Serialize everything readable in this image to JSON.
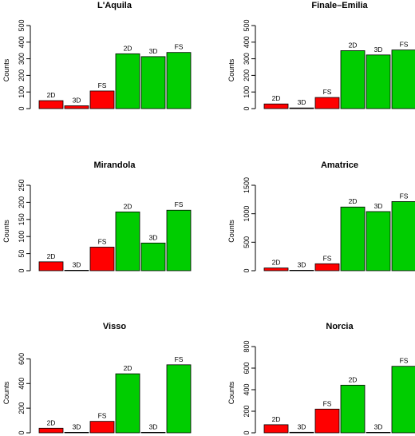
{
  "colors": {
    "red": "#ff0000",
    "green": "#00cd00",
    "stroke": "#000000"
  },
  "chart_data": [
    {
      "type": "bar",
      "title": "L'Aquila",
      "ylabel": "Counts",
      "ylim": [
        0,
        500
      ],
      "yticks": [
        "0",
        "100",
        "200",
        "300",
        "400",
        "500"
      ],
      "categories": [
        "2D",
        "3D",
        "FS",
        "2D",
        "3D",
        "FS"
      ],
      "values": [
        48,
        17,
        106,
        330,
        313,
        338
      ],
      "bar_colors": [
        "red",
        "red",
        "red",
        "green",
        "green",
        "green"
      ]
    },
    {
      "type": "bar",
      "title": "Finale–Emilia",
      "ylabel": "Counts",
      "ylim": [
        0,
        500
      ],
      "yticks": [
        "0",
        "100",
        "200",
        "300",
        "400",
        "500"
      ],
      "categories": [
        "2D",
        "3D",
        "FS",
        "2D",
        "3D",
        "FS"
      ],
      "values": [
        28,
        4,
        67,
        349,
        323,
        353
      ],
      "bar_colors": [
        "red",
        "red",
        "red",
        "green",
        "green",
        "green"
      ]
    },
    {
      "type": "bar",
      "title": "Mirandola",
      "ylabel": "Counts",
      "ylim": [
        0,
        250
      ],
      "yticks": [
        "0",
        "50",
        "100",
        "150",
        "200",
        "250"
      ],
      "categories": [
        "2D",
        "3D",
        "FS",
        "2D",
        "3D",
        "FS"
      ],
      "values": [
        26,
        1,
        69,
        172,
        81,
        177
      ],
      "bar_colors": [
        "red",
        "red",
        "red",
        "green",
        "green",
        "green"
      ]
    },
    {
      "type": "bar",
      "title": "Amatrice",
      "ylabel": "Counts",
      "ylim": [
        0,
        1500
      ],
      "yticks": [
        "0",
        "500",
        "1000",
        "1500"
      ],
      "categories": [
        "2D",
        "3D",
        "FS",
        "2D",
        "3D",
        "FS"
      ],
      "values": [
        48,
        8,
        122,
        1118,
        1038,
        1214
      ],
      "bar_colors": [
        "red",
        "red",
        "red",
        "green",
        "green",
        "green"
      ]
    },
    {
      "type": "bar",
      "title": "Visso",
      "ylabel": "Counts",
      "ylim": [
        0,
        700
      ],
      "yticks": [
        "0",
        "200",
        "400",
        "600"
      ],
      "categories": [
        "2D",
        "3D",
        "FS",
        "2D",
        "3D",
        "FS"
      ],
      "values": [
        37,
        3,
        93,
        479,
        3,
        552
      ],
      "bar_colors": [
        "red",
        "red",
        "red",
        "green",
        "green",
        "green"
      ]
    },
    {
      "type": "bar",
      "title": "Norcia",
      "ylabel": "Counts",
      "ylim": [
        0,
        800
      ],
      "yticks": [
        "0",
        "200",
        "400",
        "600",
        "800"
      ],
      "categories": [
        "2D",
        "3D",
        "FS",
        "2D",
        "3D",
        "FS"
      ],
      "values": [
        75,
        5,
        220,
        442,
        4,
        617
      ],
      "bar_colors": [
        "red",
        "red",
        "red",
        "green",
        "green",
        "green"
      ]
    }
  ]
}
